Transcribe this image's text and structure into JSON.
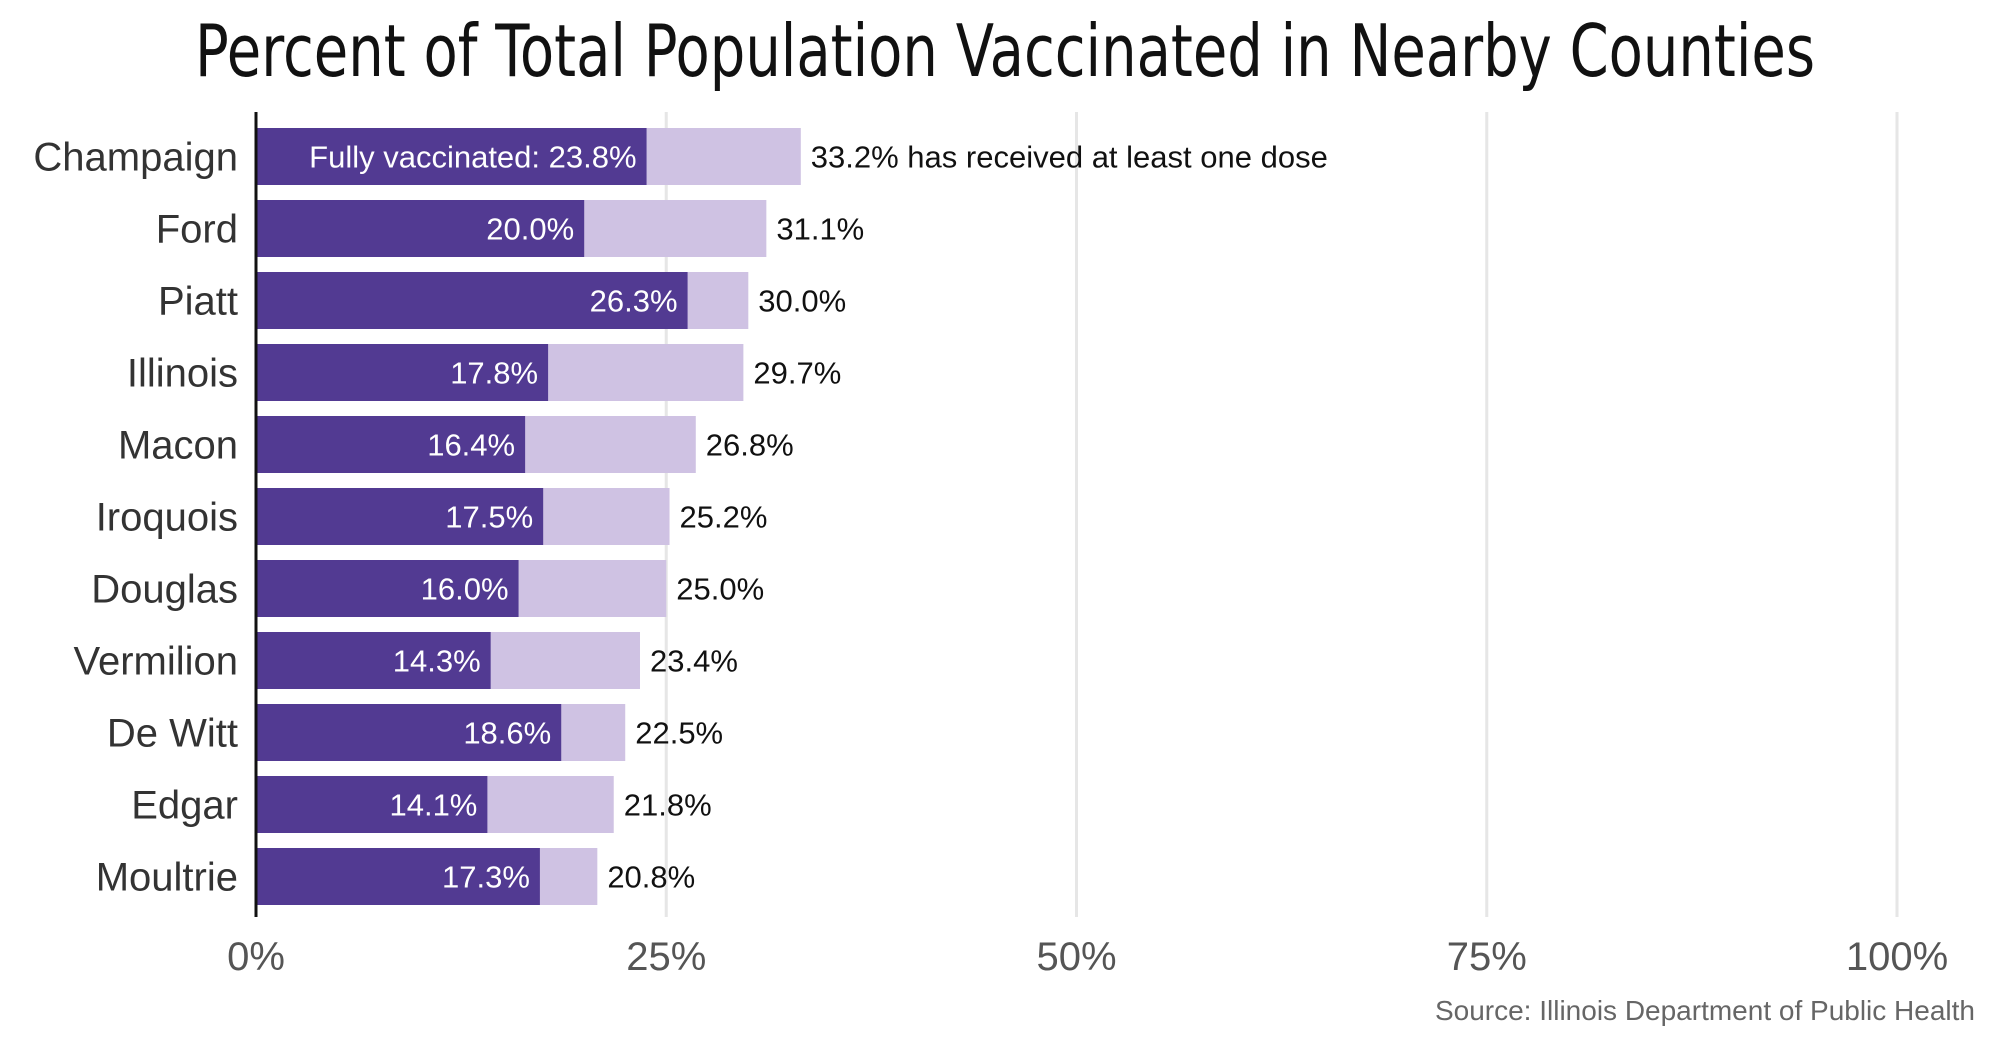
{
  "chart_data": {
    "type": "bar",
    "orientation": "horizontal",
    "stacked": false,
    "title": "Percent of Total Population Vaccinated in Nearby Counties",
    "source": "Source: Illinois Department of Public Health",
    "categories": [
      "Champaign",
      "Ford",
      "Piatt",
      "Illinois",
      "Macon",
      "Iroquois",
      "Douglas",
      "Vermilion",
      "De Witt",
      "Edgar",
      "Moultrie"
    ],
    "series": [
      {
        "key": "fully",
        "values": [
          23.8,
          20.0,
          26.3,
          17.8,
          16.4,
          17.5,
          16.0,
          14.3,
          18.6,
          14.1,
          17.3
        ],
        "labels": [
          "Fully vaccinated: 23.8%",
          "20.0%",
          "26.3%",
          "17.8%",
          "16.4%",
          "17.5%",
          "16.0%",
          "14.3%",
          "18.6%",
          "14.1%",
          "17.3%"
        ],
        "color": "#523a92"
      },
      {
        "key": "one_dose",
        "values": [
          33.2,
          31.1,
          30.0,
          29.7,
          26.8,
          25.2,
          25.0,
          23.4,
          22.5,
          21.8,
          20.8
        ],
        "labels": [
          "33.2% has received at least one dose",
          "31.1%",
          "30.0%",
          "29.7%",
          "26.8%",
          "25.2%",
          "25.0%",
          "23.4%",
          "22.5%",
          "21.8%",
          "20.8%"
        ],
        "color": "#cfc2e3"
      }
    ],
    "xlim": [
      0,
      100
    ],
    "xticks": [
      0,
      25,
      50,
      75,
      100
    ],
    "xtick_labels": [
      "0%",
      "25%",
      "50%",
      "75%",
      "100%"
    ],
    "grid": true,
    "gridline_color": "#e6e6e6",
    "axis_color": "#111111",
    "legend": "none"
  }
}
